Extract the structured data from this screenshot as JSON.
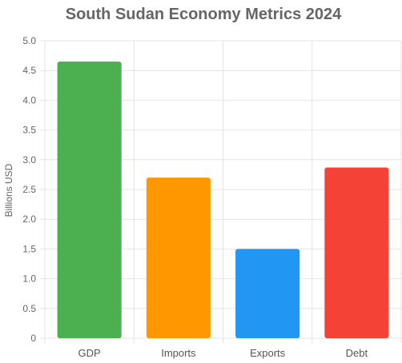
{
  "chart_data": {
    "type": "bar",
    "title": "South Sudan Economy Metrics 2024",
    "xlabel": "",
    "ylabel": "Billions USD",
    "categories": [
      "GDP",
      "Imports",
      "Exports",
      "Debt"
    ],
    "values": [
      4.65,
      2.7,
      1.5,
      2.87
    ],
    "colors": [
      "#4caf50",
      "#ff9800",
      "#2196f3",
      "#f44336"
    ],
    "ylim": [
      0,
      5
    ],
    "yticks": [
      "0",
      "0.5",
      "1.0",
      "1.5",
      "2.0",
      "2.5",
      "3.0",
      "3.5",
      "4.0",
      "4.5",
      "5.0"
    ],
    "grid": true,
    "legend": "none"
  }
}
